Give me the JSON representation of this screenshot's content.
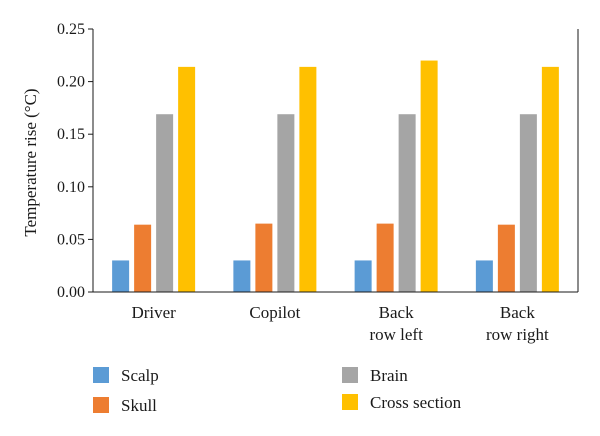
{
  "chart_data": {
    "type": "bar",
    "title": "",
    "xlabel": "",
    "ylabel": "Temperature rise (°C)",
    "ylim": [
      0,
      0.25
    ],
    "yticks": [
      "0.00",
      "0.05",
      "0.10",
      "0.15",
      "0.20",
      "0.25"
    ],
    "categories": [
      [
        "Driver"
      ],
      [
        "Copilot"
      ],
      [
        "Back",
        "row left"
      ],
      [
        "Back",
        "row right"
      ]
    ],
    "series": [
      {
        "name": "Scalp",
        "color": "#5b9bd5",
        "values": [
          0.03,
          0.03,
          0.03,
          0.03
        ]
      },
      {
        "name": "Skull",
        "color": "#ed7d31",
        "values": [
          0.064,
          0.065,
          0.065,
          0.064
        ]
      },
      {
        "name": "Brain",
        "color": "#a5a5a5",
        "values": [
          0.169,
          0.169,
          0.169,
          0.169
        ]
      },
      {
        "name": "Cross section",
        "color": "#ffc000",
        "values": [
          0.214,
          0.214,
          0.22,
          0.214
        ]
      }
    ],
    "grid": false,
    "legend_position": "bottom"
  }
}
